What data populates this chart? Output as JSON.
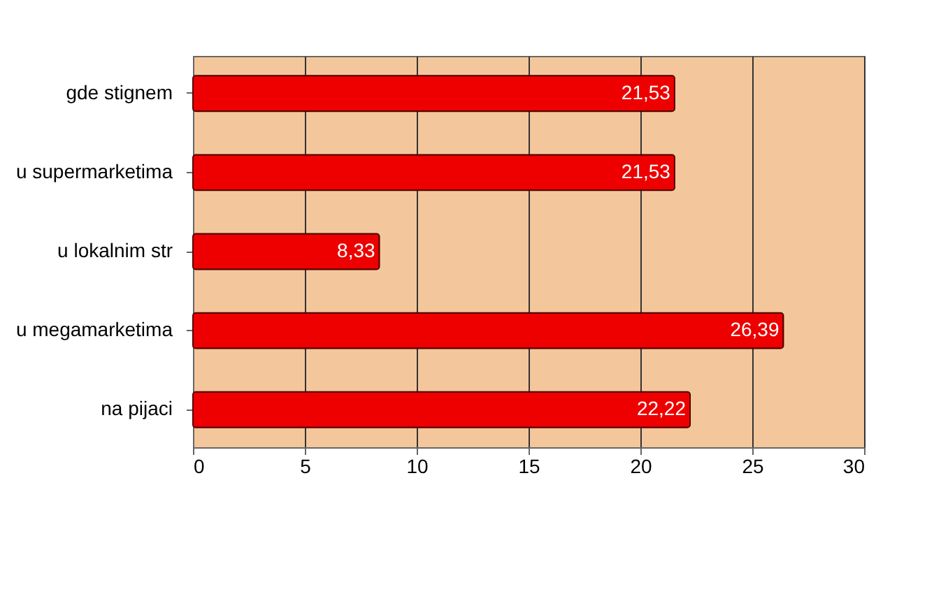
{
  "chart_data": {
    "type": "bar",
    "orientation": "horizontal",
    "categories": [
      "gde stignem",
      "u supermarketima",
      "u lokalnim str",
      "u megamarketima",
      "na pijaci"
    ],
    "values": [
      21.53,
      21.53,
      8.33,
      26.39,
      22.22
    ],
    "value_labels": [
      "21,53",
      "21,53",
      "8,33",
      "26,39",
      "22,22"
    ],
    "color": "#ee0000",
    "xlim": [
      0,
      30
    ],
    "xticks": [
      0,
      5,
      10,
      15,
      20,
      25,
      30
    ],
    "grid": "x"
  }
}
